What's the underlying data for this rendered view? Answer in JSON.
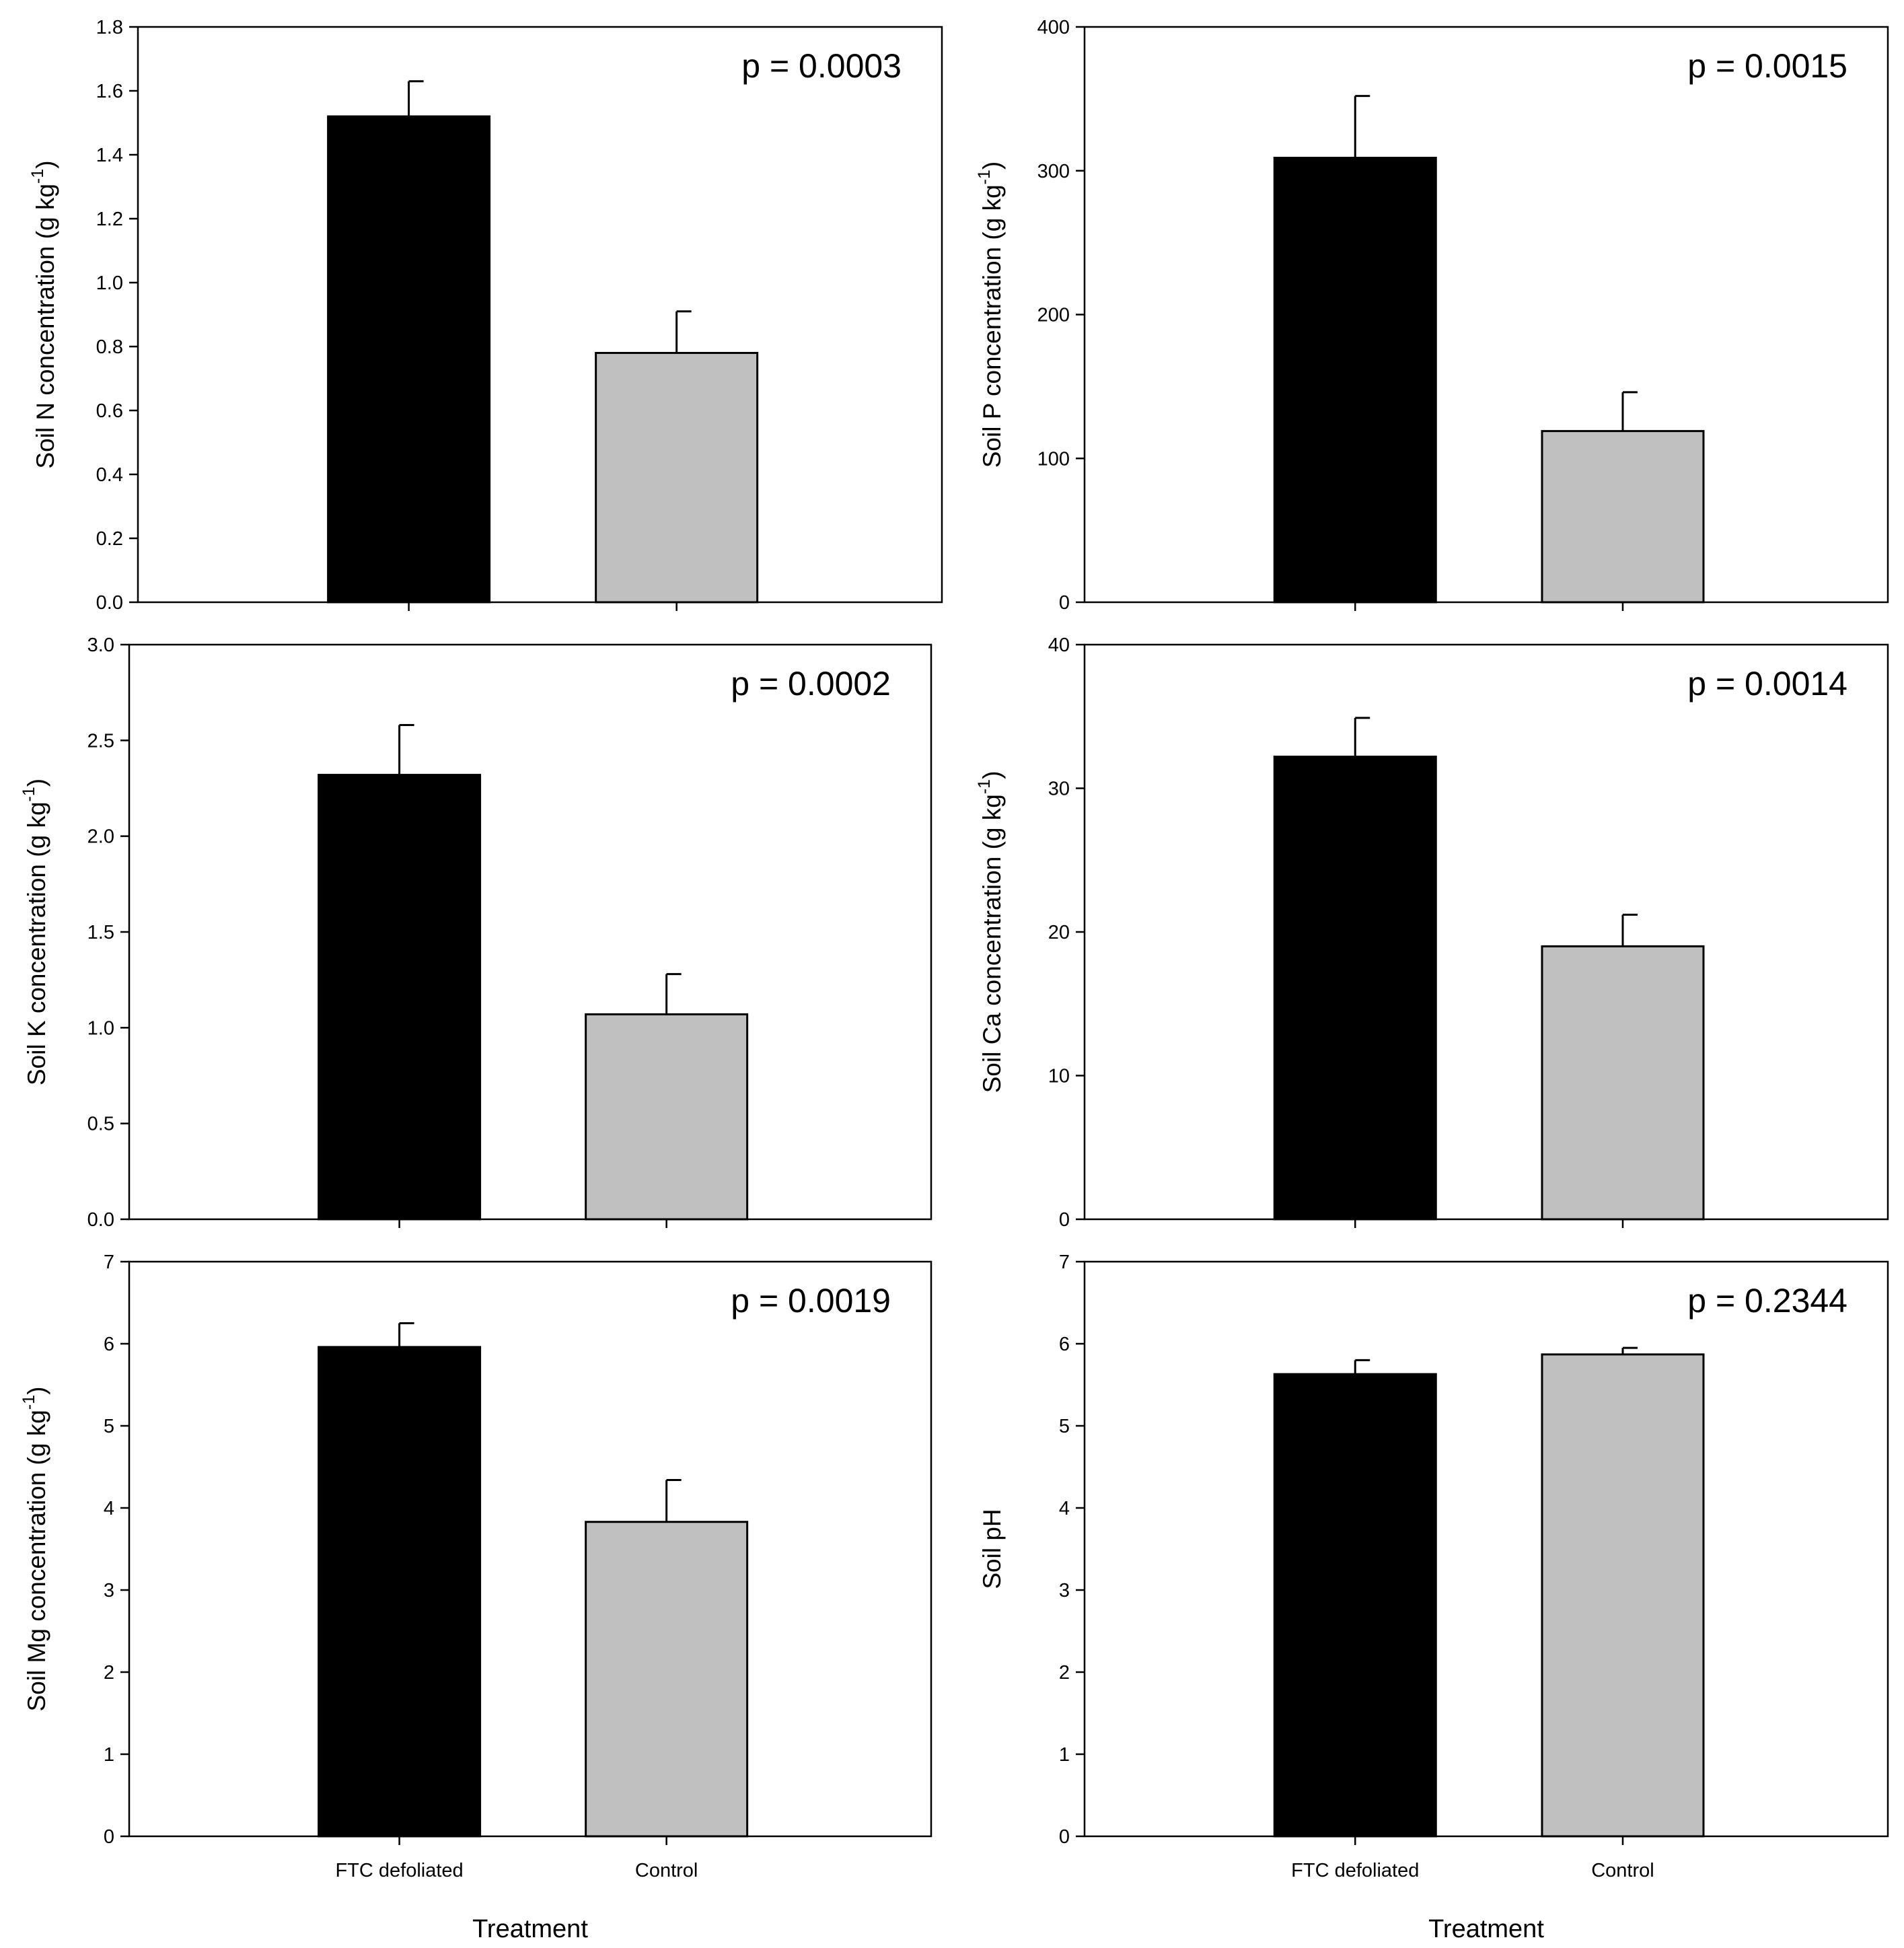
{
  "colors": {
    "FTC defoliated": "#000000",
    "Control": "#c0c0c0"
  },
  "chart_data": [
    {
      "type": "bar",
      "categories": [
        "FTC defoliated",
        "Control"
      ],
      "values": [
        1.52,
        0.78
      ],
      "errors": [
        0.11,
        0.13
      ],
      "ylabel": "Soil N concentration (g kg",
      "ylabel_sup": "-1",
      "ylabel_tail": ")",
      "xlabel": "",
      "ylim": [
        0,
        1.8
      ],
      "yticks": [
        "0.0",
        "0.2",
        "0.4",
        "0.6",
        "0.8",
        "1.0",
        "1.2",
        "1.4",
        "1.6",
        "1.8"
      ],
      "show_category_labels": false,
      "annotation": "p = 0.0003"
    },
    {
      "type": "bar",
      "categories": [
        "FTC defoliated",
        "Control"
      ],
      "values": [
        309,
        119
      ],
      "errors": [
        43,
        27
      ],
      "ylabel": "Soil P concentration (g kg",
      "ylabel_sup": "-1",
      "ylabel_tail": ")",
      "xlabel": "",
      "ylim": [
        0,
        400
      ],
      "yticks": [
        "0",
        "100",
        "200",
        "300",
        "400"
      ],
      "show_category_labels": false,
      "annotation": "p = 0.0015"
    },
    {
      "type": "bar",
      "categories": [
        "FTC defoliated",
        "Control"
      ],
      "values": [
        2.32,
        1.07
      ],
      "errors": [
        0.26,
        0.21
      ],
      "ylabel": "Soil K concentration (g kg",
      "ylabel_sup": "-1",
      "ylabel_tail": ")",
      "xlabel": "",
      "ylim": [
        0,
        3.0
      ],
      "yticks": [
        "0.0",
        "0.5",
        "1.0",
        "1.5",
        "2.0",
        "2.5",
        "3.0"
      ],
      "show_category_labels": false,
      "annotation": "p = 0.0002"
    },
    {
      "type": "bar",
      "categories": [
        "FTC defoliated",
        "Control"
      ],
      "values": [
        32.2,
        19.0
      ],
      "errors": [
        2.7,
        2.2
      ],
      "ylabel": "Soil Ca concentration (g kg",
      "ylabel_sup": "-1",
      "ylabel_tail": ")",
      "xlabel": "",
      "ylim": [
        0,
        40
      ],
      "yticks": [
        "0",
        "10",
        "20",
        "30",
        "40"
      ],
      "show_category_labels": false,
      "annotation": "p = 0.0014"
    },
    {
      "type": "bar",
      "categories": [
        "FTC defoliated",
        "Control"
      ],
      "values": [
        5.96,
        3.83
      ],
      "errors": [
        0.29,
        0.51
      ],
      "ylabel": "Soil Mg concentration (g kg",
      "ylabel_sup": "-1",
      "ylabel_tail": ")",
      "xlabel": "Treatment",
      "ylim": [
        0,
        7
      ],
      "yticks": [
        "0",
        "1",
        "2",
        "3",
        "4",
        "5",
        "6",
        "7"
      ],
      "show_category_labels": true,
      "annotation": "p = 0.0019"
    },
    {
      "type": "bar",
      "categories": [
        "FTC defoliated",
        "Control"
      ],
      "values": [
        5.63,
        5.87
      ],
      "errors": [
        0.17,
        0.08
      ],
      "ylabel": "Soil pH",
      "ylabel_sup": "",
      "ylabel_tail": "",
      "xlabel": "Treatment",
      "ylim": [
        0,
        7
      ],
      "yticks": [
        "0",
        "1",
        "2",
        "3",
        "4",
        "5",
        "6",
        "7"
      ],
      "show_category_labels": true,
      "annotation": "p = 0.2344"
    }
  ]
}
